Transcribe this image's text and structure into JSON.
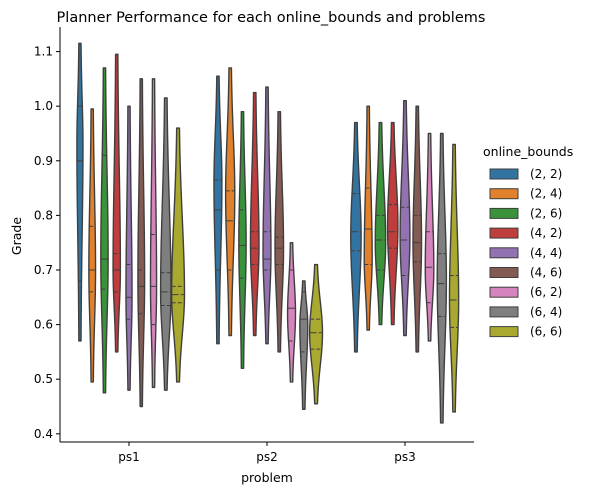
{
  "chart_data": {
    "type": "violin",
    "title": "Planner Performance for each online_bounds and problems",
    "xlabel": "problem",
    "ylabel": "Grade",
    "categories": [
      "ps1",
      "ps2",
      "ps3"
    ],
    "ylim": [
      0.385,
      1.145
    ],
    "yticks": [
      0.4,
      0.5,
      0.6,
      0.7,
      0.8,
      0.9,
      1.0,
      1.1
    ],
    "ytick_labels": [
      "0.4",
      "0.5",
      "0.6",
      "0.7",
      "0.8",
      "0.9",
      "1.0",
      "1.1"
    ],
    "legend": {
      "title": "online_bounds",
      "placement": "right"
    },
    "series": [
      {
        "name": "(2, 2)",
        "color": "#3274a1",
        "data": [
          {
            "min": 0.57,
            "max": 1.115,
            "q1": 0.68,
            "median": 0.9,
            "q3": 1.0,
            "peak": 0.93,
            "hw": 0.35
          },
          {
            "min": 0.565,
            "max": 1.055,
            "q1": 0.7,
            "median": 0.81,
            "q3": 0.865,
            "peak": 0.86,
            "hw": 0.5
          },
          {
            "min": 0.55,
            "max": 0.97,
            "q1": 0.735,
            "median": 0.77,
            "q3": 0.84,
            "peak": 0.76,
            "hw": 0.7
          }
        ]
      },
      {
        "name": "(2, 4)",
        "color": "#e1812c",
        "data": [
          {
            "min": 0.495,
            "max": 0.995,
            "q1": 0.66,
            "median": 0.7,
            "q3": 0.78,
            "peak": 0.7,
            "hw": 0.4
          },
          {
            "min": 0.58,
            "max": 1.07,
            "q1": 0.7,
            "median": 0.79,
            "q3": 0.845,
            "peak": 0.84,
            "hw": 0.6
          },
          {
            "min": 0.59,
            "max": 1.0,
            "q1": 0.71,
            "median": 0.775,
            "q3": 0.85,
            "peak": 0.72,
            "hw": 0.5
          }
        ]
      },
      {
        "name": "(2, 6)",
        "color": "#3a923a",
        "data": [
          {
            "min": 0.475,
            "max": 1.07,
            "q1": 0.665,
            "median": 0.72,
            "q3": 0.91,
            "peak": 0.72,
            "hw": 0.45
          },
          {
            "min": 0.52,
            "max": 0.99,
            "q1": 0.685,
            "median": 0.745,
            "q3": 0.81,
            "peak": 0.75,
            "hw": 0.45
          },
          {
            "min": 0.6,
            "max": 0.97,
            "q1": 0.7,
            "median": 0.755,
            "q3": 0.8,
            "peak": 0.75,
            "hw": 0.7
          }
        ]
      },
      {
        "name": "(4, 2)",
        "color": "#c03d3e",
        "data": [
          {
            "min": 0.55,
            "max": 1.095,
            "q1": 0.66,
            "median": 0.7,
            "q3": 0.73,
            "peak": 0.7,
            "hw": 0.45
          },
          {
            "min": 0.58,
            "max": 1.025,
            "q1": 0.71,
            "median": 0.74,
            "q3": 0.77,
            "peak": 0.745,
            "hw": 0.55
          },
          {
            "min": 0.6,
            "max": 0.97,
            "q1": 0.74,
            "median": 0.77,
            "q3": 0.82,
            "peak": 0.78,
            "hw": 0.7
          }
        ]
      },
      {
        "name": "(4, 4)",
        "color": "#9372b2",
        "data": [
          {
            "min": 0.48,
            "max": 1.0,
            "q1": 0.61,
            "median": 0.65,
            "q3": 0.71,
            "peak": 0.65,
            "hw": 0.35
          },
          {
            "min": 0.565,
            "max": 1.035,
            "q1": 0.7,
            "median": 0.72,
            "q3": 0.77,
            "peak": 0.73,
            "hw": 0.5
          },
          {
            "min": 0.58,
            "max": 1.01,
            "q1": 0.69,
            "median": 0.755,
            "q3": 0.815,
            "peak": 0.76,
            "hw": 0.65
          }
        ]
      },
      {
        "name": "(4, 6)",
        "color": "#845b53",
        "data": [
          {
            "min": 0.45,
            "max": 1.05,
            "q1": 0.62,
            "median": 0.67,
            "q3": 0.7,
            "peak": 0.68,
            "hw": 0.4
          },
          {
            "min": 0.55,
            "max": 0.99,
            "q1": 0.71,
            "median": 0.74,
            "q3": 0.76,
            "peak": 0.74,
            "hw": 0.55
          },
          {
            "min": 0.55,
            "max": 1.0,
            "q1": 0.715,
            "median": 0.75,
            "q3": 0.8,
            "peak": 0.75,
            "hw": 0.55
          }
        ]
      },
      {
        "name": "(6, 2)",
        "color": "#d684bd",
        "data": [
          {
            "min": 0.485,
            "max": 1.05,
            "q1": 0.6,
            "median": 0.67,
            "q3": 0.765,
            "peak": 0.67,
            "hw": 0.35
          },
          {
            "min": 0.495,
            "max": 0.75,
            "q1": 0.57,
            "median": 0.63,
            "q3": 0.7,
            "peak": 0.62,
            "hw": 0.5
          },
          {
            "min": 0.57,
            "max": 0.95,
            "q1": 0.64,
            "median": 0.705,
            "q3": 0.77,
            "peak": 0.7,
            "hw": 0.55
          }
        ]
      },
      {
        "name": "(6, 4)",
        "color": "#7f7f7f",
        "data": [
          {
            "min": 0.48,
            "max": 1.015,
            "q1": 0.635,
            "median": 0.66,
            "q3": 0.695,
            "peak": 0.66,
            "hw": 0.7
          },
          {
            "min": 0.445,
            "max": 0.68,
            "q1": 0.55,
            "median": 0.61,
            "q3": 0.66,
            "peak": 0.6,
            "hw": 0.5
          },
          {
            "min": 0.42,
            "max": 0.95,
            "q1": 0.615,
            "median": 0.675,
            "q3": 0.73,
            "peak": 0.68,
            "hw": 0.6
          }
        ]
      },
      {
        "name": "(6, 6)",
        "color": "#a9a92f",
        "data": [
          {
            "min": 0.495,
            "max": 0.96,
            "q1": 0.64,
            "median": 0.655,
            "q3": 0.67,
            "peak": 0.655,
            "hw": 0.9
          },
          {
            "min": 0.455,
            "max": 0.71,
            "q1": 0.555,
            "median": 0.585,
            "q3": 0.61,
            "peak": 0.585,
            "hw": 0.9
          },
          {
            "min": 0.44,
            "max": 0.93,
            "q1": 0.595,
            "median": 0.645,
            "q3": 0.69,
            "peak": 0.645,
            "hw": 0.6
          }
        ]
      }
    ]
  }
}
